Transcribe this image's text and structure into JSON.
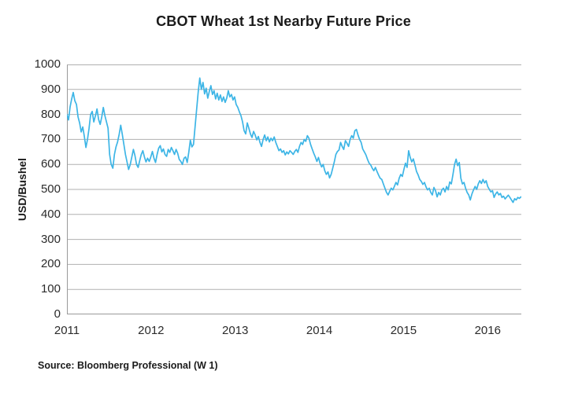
{
  "page": {
    "background": "#ffffff"
  },
  "chart_data": {
    "type": "line",
    "title": "CBOT Wheat 1st Nearby Future Price",
    "ylabel": "USD/Bushel",
    "xlabel": "",
    "source": "Source: Bloomberg Professional (W 1)",
    "legend": "none",
    "grid": "horizontal",
    "line_color": "#3db5e6",
    "grid_color": "#b0b0b0",
    "axis_color": "#9a9a9a",
    "text_color": "#2b2b2b",
    "xlim": [
      2011.0,
      2016.4
    ],
    "ylim": [
      0,
      1000
    ],
    "yticks": [
      0,
      100,
      200,
      300,
      400,
      500,
      600,
      700,
      800,
      900,
      1000
    ],
    "xticks": [
      2011,
      2012,
      2013,
      2014,
      2015,
      2016
    ],
    "x_start": 2011.0,
    "x_step_years": 0.0188,
    "values": [
      800,
      778,
      830,
      862,
      888,
      855,
      840,
      790,
      766,
      730,
      750,
      712,
      668,
      700,
      745,
      800,
      812,
      770,
      795,
      822,
      780,
      760,
      790,
      828,
      795,
      770,
      745,
      640,
      600,
      585,
      640,
      670,
      690,
      720,
      757,
      720,
      680,
      640,
      610,
      580,
      600,
      630,
      660,
      635,
      600,
      588,
      615,
      640,
      655,
      630,
      610,
      625,
      612,
      630,
      652,
      625,
      608,
      640,
      665,
      675,
      650,
      662,
      640,
      632,
      660,
      648,
      668,
      655,
      640,
      660,
      645,
      620,
      612,
      600,
      625,
      630,
      608,
      648,
      697,
      670,
      680,
      750,
      820,
      890,
      946,
      900,
      928,
      882,
      905,
      865,
      892,
      915,
      880,
      895,
      862,
      885,
      858,
      878,
      852,
      870,
      848,
      865,
      895,
      870,
      880,
      858,
      870,
      840,
      828,
      810,
      795,
      770,
      735,
      722,
      766,
      745,
      722,
      708,
      732,
      718,
      698,
      712,
      688,
      672,
      700,
      718,
      695,
      710,
      690,
      705,
      695,
      710,
      688,
      672,
      655,
      662,
      648,
      655,
      638,
      650,
      642,
      655,
      648,
      640,
      652,
      660,
      648,
      672,
      688,
      680,
      700,
      692,
      715,
      705,
      680,
      662,
      645,
      630,
      612,
      628,
      605,
      590,
      600,
      575,
      560,
      570,
      546,
      560,
      585,
      610,
      640,
      652,
      658,
      688,
      672,
      660,
      695,
      685,
      672,
      700,
      715,
      705,
      735,
      740,
      718,
      700,
      688,
      662,
      650,
      638,
      620,
      605,
      598,
      585,
      575,
      588,
      572,
      558,
      545,
      540,
      522,
      505,
      488,
      478,
      492,
      505,
      498,
      512,
      528,
      518,
      545,
      560,
      552,
      580,
      605,
      588,
      655,
      628,
      610,
      622,
      598,
      572,
      558,
      540,
      532,
      520,
      528,
      510,
      498,
      505,
      488,
      478,
      508,
      494,
      470,
      488,
      478,
      498,
      505,
      490,
      512,
      498,
      530,
      522,
      560,
      600,
      621,
      595,
      608,
      545,
      522,
      528,
      505,
      488,
      478,
      458,
      482,
      498,
      512,
      500,
      522,
      535,
      524,
      540,
      526,
      535,
      512,
      500,
      490,
      495,
      468,
      482,
      490,
      478,
      484,
      468,
      473,
      462,
      470,
      477,
      468,
      458,
      448,
      463,
      458,
      468,
      464,
      470
    ]
  }
}
